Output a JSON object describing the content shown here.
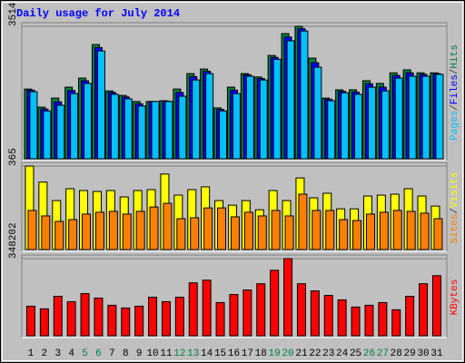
{
  "chart_data": [
    {
      "type": "bar",
      "title": "Daily usage for July 2014",
      "ylim": [
        0,
        3514
      ],
      "yticks": [
        3514
      ],
      "legend_separator": "/",
      "series": [
        {
          "name": "Hits",
          "color": "#008040",
          "values": [
            1850,
            1370,
            1610,
            1900,
            2140,
            3030,
            1800,
            1680,
            1520,
            1520,
            1540,
            1850,
            2260,
            2380,
            1350,
            1900,
            2260,
            2170,
            2740,
            3320,
            3514,
            2670,
            1610,
            1830,
            1830,
            2070,
            2000,
            2280,
            2360,
            2280,
            2280
          ]
        },
        {
          "name": "Files",
          "color": "#0000ff",
          "values": [
            1820,
            1320,
            1510,
            1810,
            2070,
            2950,
            1760,
            1640,
            1460,
            1520,
            1530,
            1760,
            2180,
            2320,
            1310,
            1820,
            2230,
            2130,
            2690,
            3230,
            3450,
            2550,
            1580,
            1790,
            1770,
            1990,
            1900,
            2210,
            2280,
            2240,
            2260
          ]
        },
        {
          "name": "Pages",
          "color": "#00c0ff",
          "values": [
            1780,
            1270,
            1420,
            1730,
            2000,
            2860,
            1710,
            1590,
            1400,
            1520,
            1520,
            1660,
            2090,
            2260,
            1270,
            1730,
            2190,
            2090,
            2640,
            3130,
            3390,
            2430,
            1540,
            1750,
            1710,
            1900,
            1800,
            2140,
            2190,
            2190,
            2240
          ]
        }
      ]
    },
    {
      "type": "bar",
      "ylim": [
        0,
        365
      ],
      "yticks": [
        365
      ],
      "legend_separator": "/",
      "series": [
        {
          "name": "Visits",
          "color": "#ffff00",
          "values": [
            365,
            295,
            214,
            266,
            258,
            254,
            258,
            230,
            258,
            262,
            330,
            238,
            262,
            274,
            214,
            194,
            214,
            174,
            258,
            214,
            313,
            226,
            246,
            178,
            178,
            234,
            238,
            242,
            266,
            234,
            190
          ]
        },
        {
          "name": "Sites",
          "color": "#ff8000",
          "values": [
            171,
            147,
            123,
            131,
            155,
            163,
            167,
            155,
            167,
            186,
            202,
            135,
            139,
            182,
            182,
            143,
            163,
            147,
            171,
            147,
            242,
            171,
            171,
            131,
            127,
            155,
            163,
            171,
            167,
            159,
            135
          ]
        }
      ]
    },
    {
      "type": "bar",
      "ylim": [
        0,
        348202
      ],
      "yticks": [
        348202
      ],
      "categories": [
        "1",
        "2",
        "3",
        "4",
        "5",
        "6",
        "7",
        "8",
        "9",
        "10",
        "11",
        "12",
        "13",
        "14",
        "15",
        "16",
        "17",
        "18",
        "19",
        "20",
        "21",
        "22",
        "23",
        "24",
        "25",
        "26",
        "27",
        "28",
        "29",
        "30",
        "31"
      ],
      "category_colors": [
        "#000000",
        "#000000",
        "#000000",
        "#000000",
        "#008040",
        "#008040",
        "#000000",
        "#000000",
        "#000000",
        "#000000",
        "#000000",
        "#008040",
        "#008040",
        "#000000",
        "#000000",
        "#000000",
        "#000000",
        "#000000",
        "#008040",
        "#008040",
        "#000000",
        "#000000",
        "#000000",
        "#000000",
        "#000000",
        "#008040",
        "#008040",
        "#000000",
        "#000000",
        "#000000",
        "#000000"
      ],
      "series": [
        {
          "name": "KBytes",
          "color": "#ff0000",
          "values": [
            133600,
            121500,
            178200,
            153900,
            190300,
            170100,
            137700,
            125500,
            133600,
            174100,
            153900,
            174100,
            238900,
            251000,
            149800,
            186300,
            206500,
            234800,
            295600,
            348202,
            234800,
            202500,
            182200,
            162000,
            129600,
            137700,
            149800,
            117400,
            178200,
            234800,
            271200
          ]
        }
      ]
    }
  ]
}
